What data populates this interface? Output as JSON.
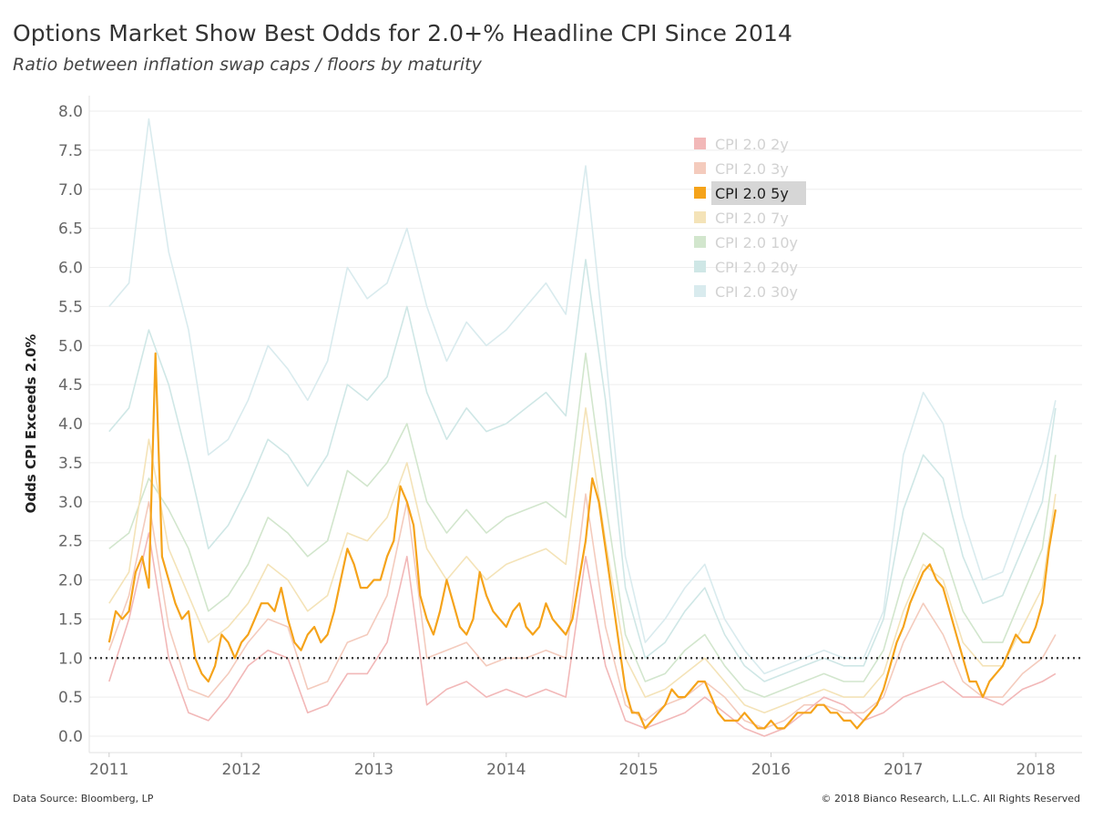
{
  "header": {
    "title": "Options Market Show Best Odds for 2.0+% Headline CPI Since 2014",
    "subtitle": "Ratio between inflation swap caps / floors by maturity"
  },
  "footer": {
    "source": "Data Source: Bloomberg, LP",
    "copyright": "© 2018 Bianco Research, L.L.C. All Rights Reserved"
  },
  "chart_data": {
    "type": "line",
    "title": "Options Market Show Best Odds for 2.0+% Headline CPI Since 2014",
    "subtitle": "Ratio between inflation swap caps / floors by maturity",
    "xlabel": "",
    "ylabel": "Odds CPI Exceeds 2.0%",
    "ylim": [
      0,
      8
    ],
    "xlim": [
      2010.85,
      2018.35
    ],
    "yticks": [
      "0.0",
      "0.5",
      "1.0",
      "1.5",
      "2.0",
      "2.5",
      "3.0",
      "3.5",
      "4.0",
      "4.5",
      "5.0",
      "5.5",
      "6.0",
      "6.5",
      "7.0",
      "7.5",
      "8.0"
    ],
    "xticks": [
      "2011",
      "2012",
      "2013",
      "2014",
      "2015",
      "2016",
      "2017",
      "2018"
    ],
    "grid": true,
    "legend_position": "top-right",
    "reference_line": {
      "y": 1.0,
      "style": "dotted",
      "color": "#333333"
    },
    "highlighted_series": "CPI 2.0 5y",
    "series": [
      {
        "name": "CPI 2.0 2y",
        "color": "#f2b8b8",
        "highlighted": false,
        "x": [
          2011.0,
          2011.15,
          2011.3,
          2011.45,
          2011.6,
          2011.75,
          2011.9,
          2012.05,
          2012.2,
          2012.35,
          2012.5,
          2012.65,
          2012.8,
          2012.95,
          2013.1,
          2013.25,
          2013.4,
          2013.55,
          2013.7,
          2013.85,
          2014.0,
          2014.15,
          2014.3,
          2014.45,
          2014.6,
          2014.75,
          2014.9,
          2015.05,
          2015.2,
          2015.35,
          2015.5,
          2015.65,
          2015.8,
          2015.95,
          2016.1,
          2016.25,
          2016.4,
          2016.55,
          2016.7,
          2016.85,
          2017.0,
          2017.15,
          2017.3,
          2017.45,
          2017.6,
          2017.75,
          2017.9,
          2018.05,
          2018.15
        ],
        "y": [
          0.7,
          1.5,
          2.6,
          1.0,
          0.3,
          0.2,
          0.5,
          0.9,
          1.1,
          1.0,
          0.3,
          0.4,
          0.8,
          0.8,
          1.2,
          2.3,
          0.4,
          0.6,
          0.7,
          0.5,
          0.6,
          0.5,
          0.6,
          0.5,
          2.3,
          0.9,
          0.2,
          0.1,
          0.2,
          0.3,
          0.5,
          0.3,
          0.1,
          0.0,
          0.1,
          0.3,
          0.5,
          0.4,
          0.2,
          0.3,
          0.5,
          0.6,
          0.7,
          0.5,
          0.5,
          0.4,
          0.6,
          0.7,
          0.8
        ]
      },
      {
        "name": "CPI 2.0 3y",
        "color": "#f4cbbd",
        "highlighted": false,
        "x": [
          2011.0,
          2011.15,
          2011.3,
          2011.45,
          2011.6,
          2011.75,
          2011.9,
          2012.05,
          2012.2,
          2012.35,
          2012.5,
          2012.65,
          2012.8,
          2012.95,
          2013.1,
          2013.25,
          2013.4,
          2013.55,
          2013.7,
          2013.85,
          2014.0,
          2014.15,
          2014.3,
          2014.45,
          2014.6,
          2014.75,
          2014.9,
          2015.05,
          2015.2,
          2015.35,
          2015.5,
          2015.65,
          2015.8,
          2015.95,
          2016.1,
          2016.25,
          2016.4,
          2016.55,
          2016.7,
          2016.85,
          2017.0,
          2017.15,
          2017.3,
          2017.45,
          2017.6,
          2017.75,
          2017.9,
          2018.05,
          2018.15
        ],
        "y": [
          1.1,
          1.8,
          3.0,
          1.4,
          0.6,
          0.5,
          0.8,
          1.2,
          1.5,
          1.4,
          0.6,
          0.7,
          1.2,
          1.3,
          1.8,
          3.0,
          1.0,
          1.1,
          1.2,
          0.9,
          1.0,
          1.0,
          1.1,
          1.0,
          3.1,
          1.4,
          0.4,
          0.2,
          0.4,
          0.5,
          0.7,
          0.5,
          0.2,
          0.1,
          0.2,
          0.4,
          0.4,
          0.3,
          0.3,
          0.5,
          1.2,
          1.7,
          1.3,
          0.7,
          0.5,
          0.5,
          0.8,
          1.0,
          1.3
        ]
      },
      {
        "name": "CPI 2.0 5y",
        "color": "#f5a31a",
        "highlighted": true,
        "x": [
          2011.0,
          2011.05,
          2011.1,
          2011.15,
          2011.2,
          2011.25,
          2011.3,
          2011.35,
          2011.4,
          2011.45,
          2011.5,
          2011.55,
          2011.6,
          2011.65,
          2011.7,
          2011.75,
          2011.8,
          2011.85,
          2011.9,
          2011.95,
          2012.0,
          2012.05,
          2012.1,
          2012.15,
          2012.2,
          2012.25,
          2012.3,
          2012.35,
          2012.4,
          2012.45,
          2012.5,
          2012.55,
          2012.6,
          2012.65,
          2012.7,
          2012.75,
          2012.8,
          2012.85,
          2012.9,
          2012.95,
          2013.0,
          2013.05,
          2013.1,
          2013.15,
          2013.2,
          2013.25,
          2013.3,
          2013.35,
          2013.4,
          2013.45,
          2013.5,
          2013.55,
          2013.6,
          2013.65,
          2013.7,
          2013.75,
          2013.8,
          2013.85,
          2013.9,
          2013.95,
          2014.0,
          2014.05,
          2014.1,
          2014.15,
          2014.2,
          2014.25,
          2014.3,
          2014.35,
          2014.4,
          2014.45,
          2014.5,
          2014.55,
          2014.6,
          2014.65,
          2014.7,
          2014.75,
          2014.8,
          2014.85,
          2014.9,
          2014.95,
          2015.0,
          2015.05,
          2015.1,
          2015.15,
          2015.2,
          2015.25,
          2015.3,
          2015.35,
          2015.4,
          2015.45,
          2015.5,
          2015.55,
          2015.6,
          2015.65,
          2015.7,
          2015.75,
          2015.8,
          2015.85,
          2015.9,
          2015.95,
          2016.0,
          2016.05,
          2016.1,
          2016.15,
          2016.2,
          2016.25,
          2016.3,
          2016.35,
          2016.4,
          2016.45,
          2016.5,
          2016.55,
          2016.6,
          2016.65,
          2016.7,
          2016.75,
          2016.8,
          2016.85,
          2016.9,
          2016.95,
          2017.0,
          2017.05,
          2017.1,
          2017.15,
          2017.2,
          2017.25,
          2017.3,
          2017.35,
          2017.4,
          2017.45,
          2017.5,
          2017.55,
          2017.6,
          2017.65,
          2017.7,
          2017.75,
          2017.8,
          2017.85,
          2017.9,
          2017.95,
          2018.0,
          2018.05,
          2018.1,
          2018.15
        ],
        "y": [
          1.2,
          1.6,
          1.5,
          1.6,
          2.1,
          2.3,
          1.9,
          4.9,
          2.3,
          2.0,
          1.7,
          1.5,
          1.6,
          1.0,
          0.8,
          0.7,
          0.9,
          1.3,
          1.2,
          1.0,
          1.2,
          1.3,
          1.5,
          1.7,
          1.7,
          1.6,
          1.9,
          1.5,
          1.2,
          1.1,
          1.3,
          1.4,
          1.2,
          1.3,
          1.6,
          2.0,
          2.4,
          2.2,
          1.9,
          1.9,
          2.0,
          2.0,
          2.3,
          2.5,
          3.2,
          3.0,
          2.7,
          1.8,
          1.5,
          1.3,
          1.6,
          2.0,
          1.7,
          1.4,
          1.3,
          1.5,
          2.1,
          1.8,
          1.6,
          1.5,
          1.4,
          1.6,
          1.7,
          1.4,
          1.3,
          1.4,
          1.7,
          1.5,
          1.4,
          1.3,
          1.5,
          2.0,
          2.5,
          3.3,
          3.0,
          2.4,
          1.8,
          1.2,
          0.6,
          0.3,
          0.3,
          0.1,
          0.2,
          0.3,
          0.4,
          0.6,
          0.5,
          0.5,
          0.6,
          0.7,
          0.7,
          0.5,
          0.3,
          0.2,
          0.2,
          0.2,
          0.3,
          0.2,
          0.1,
          0.1,
          0.2,
          0.1,
          0.1,
          0.2,
          0.3,
          0.3,
          0.3,
          0.4,
          0.4,
          0.3,
          0.3,
          0.2,
          0.2,
          0.1,
          0.2,
          0.3,
          0.4,
          0.6,
          0.9,
          1.2,
          1.4,
          1.7,
          1.9,
          2.1,
          2.2,
          2.0,
          1.9,
          1.6,
          1.3,
          1.0,
          0.7,
          0.7,
          0.5,
          0.7,
          0.8,
          0.9,
          1.1,
          1.3,
          1.2,
          1.2,
          1.4,
          1.7,
          2.4,
          2.9
        ]
      },
      {
        "name": "CPI 2.0 7y",
        "color": "#f4e3b8",
        "highlighted": false,
        "x": [
          2011.0,
          2011.15,
          2011.3,
          2011.45,
          2011.6,
          2011.75,
          2011.9,
          2012.05,
          2012.2,
          2012.35,
          2012.5,
          2012.65,
          2012.8,
          2012.95,
          2013.1,
          2013.25,
          2013.4,
          2013.55,
          2013.7,
          2013.85,
          2014.0,
          2014.15,
          2014.3,
          2014.45,
          2014.6,
          2014.75,
          2014.9,
          2015.05,
          2015.2,
          2015.35,
          2015.5,
          2015.65,
          2015.8,
          2015.95,
          2016.1,
          2016.25,
          2016.4,
          2016.55,
          2016.7,
          2016.85,
          2017.0,
          2017.15,
          2017.3,
          2017.45,
          2017.6,
          2017.75,
          2017.9,
          2018.05,
          2018.15
        ],
        "y": [
          1.7,
          2.1,
          3.8,
          2.4,
          1.8,
          1.2,
          1.4,
          1.7,
          2.2,
          2.0,
          1.6,
          1.8,
          2.6,
          2.5,
          2.8,
          3.5,
          2.4,
          2.0,
          2.3,
          2.0,
          2.2,
          2.3,
          2.4,
          2.2,
          4.2,
          2.5,
          1.0,
          0.5,
          0.6,
          0.8,
          1.0,
          0.7,
          0.4,
          0.3,
          0.4,
          0.5,
          0.6,
          0.5,
          0.5,
          0.8,
          1.6,
          2.2,
          2.0,
          1.2,
          0.9,
          0.9,
          1.4,
          1.9,
          3.1
        ]
      },
      {
        "name": "CPI 2.0 10y",
        "color": "#d2e6cd",
        "highlighted": false,
        "x": [
          2011.0,
          2011.15,
          2011.3,
          2011.45,
          2011.6,
          2011.75,
          2011.9,
          2012.05,
          2012.2,
          2012.35,
          2012.5,
          2012.65,
          2012.8,
          2012.95,
          2013.1,
          2013.25,
          2013.4,
          2013.55,
          2013.7,
          2013.85,
          2014.0,
          2014.15,
          2014.3,
          2014.45,
          2014.6,
          2014.75,
          2014.9,
          2015.05,
          2015.2,
          2015.35,
          2015.5,
          2015.65,
          2015.8,
          2015.95,
          2016.1,
          2016.25,
          2016.4,
          2016.55,
          2016.7,
          2016.85,
          2017.0,
          2017.15,
          2017.3,
          2017.45,
          2017.6,
          2017.75,
          2017.9,
          2018.05,
          2018.15
        ],
        "y": [
          2.4,
          2.6,
          3.3,
          2.9,
          2.4,
          1.6,
          1.8,
          2.2,
          2.8,
          2.6,
          2.3,
          2.5,
          3.4,
          3.2,
          3.5,
          4.0,
          3.0,
          2.6,
          2.9,
          2.6,
          2.8,
          2.9,
          3.0,
          2.8,
          4.9,
          3.0,
          1.3,
          0.7,
          0.8,
          1.1,
          1.3,
          0.9,
          0.6,
          0.5,
          0.6,
          0.7,
          0.8,
          0.7,
          0.7,
          1.1,
          2.0,
          2.6,
          2.4,
          1.6,
          1.2,
          1.2,
          1.8,
          2.4,
          3.6
        ]
      },
      {
        "name": "CPI 2.0 20y",
        "color": "#cfe7e6",
        "highlighted": false,
        "x": [
          2011.0,
          2011.15,
          2011.3,
          2011.45,
          2011.6,
          2011.75,
          2011.9,
          2012.05,
          2012.2,
          2012.35,
          2012.5,
          2012.65,
          2012.8,
          2012.95,
          2013.1,
          2013.25,
          2013.4,
          2013.55,
          2013.7,
          2013.85,
          2014.0,
          2014.15,
          2014.3,
          2014.45,
          2014.6,
          2014.75,
          2014.9,
          2015.05,
          2015.2,
          2015.35,
          2015.5,
          2015.65,
          2015.8,
          2015.95,
          2016.1,
          2016.25,
          2016.4,
          2016.55,
          2016.7,
          2016.85,
          2017.0,
          2017.15,
          2017.3,
          2017.45,
          2017.6,
          2017.75,
          2017.9,
          2018.05,
          2018.15
        ],
        "y": [
          3.9,
          4.2,
          5.2,
          4.5,
          3.5,
          2.4,
          2.7,
          3.2,
          3.8,
          3.6,
          3.2,
          3.6,
          4.5,
          4.3,
          4.6,
          5.5,
          4.4,
          3.8,
          4.2,
          3.9,
          4.0,
          4.2,
          4.4,
          4.1,
          6.1,
          4.3,
          1.9,
          1.0,
          1.2,
          1.6,
          1.9,
          1.3,
          0.9,
          0.7,
          0.8,
          0.9,
          1.0,
          0.9,
          0.9,
          1.5,
          2.9,
          3.6,
          3.3,
          2.3,
          1.7,
          1.8,
          2.4,
          3.0,
          4.2
        ]
      },
      {
        "name": "CPI 2.0 30y",
        "color": "#d9ebee",
        "highlighted": false,
        "x": [
          2011.0,
          2011.15,
          2011.3,
          2011.45,
          2011.6,
          2011.75,
          2011.9,
          2012.05,
          2012.2,
          2012.35,
          2012.5,
          2012.65,
          2012.8,
          2012.95,
          2013.1,
          2013.25,
          2013.4,
          2013.55,
          2013.7,
          2013.85,
          2014.0,
          2014.15,
          2014.3,
          2014.45,
          2014.6,
          2014.75,
          2014.9,
          2015.05,
          2015.2,
          2015.35,
          2015.5,
          2015.65,
          2015.8,
          2015.95,
          2016.1,
          2016.25,
          2016.4,
          2016.55,
          2016.7,
          2016.85,
          2017.0,
          2017.15,
          2017.3,
          2017.45,
          2017.6,
          2017.75,
          2017.9,
          2018.05,
          2018.15
        ],
        "y": [
          5.5,
          5.8,
          7.9,
          6.2,
          5.2,
          3.6,
          3.8,
          4.3,
          5.0,
          4.7,
          4.3,
          4.8,
          6.0,
          5.6,
          5.8,
          6.5,
          5.5,
          4.8,
          5.3,
          5.0,
          5.2,
          5.5,
          5.8,
          5.4,
          7.3,
          4.9,
          2.3,
          1.2,
          1.5,
          1.9,
          2.2,
          1.5,
          1.1,
          0.8,
          0.9,
          1.0,
          1.1,
          1.0,
          1.0,
          1.6,
          3.6,
          4.4,
          4.0,
          2.8,
          2.0,
          2.1,
          2.8,
          3.5,
          4.3
        ]
      }
    ]
  }
}
